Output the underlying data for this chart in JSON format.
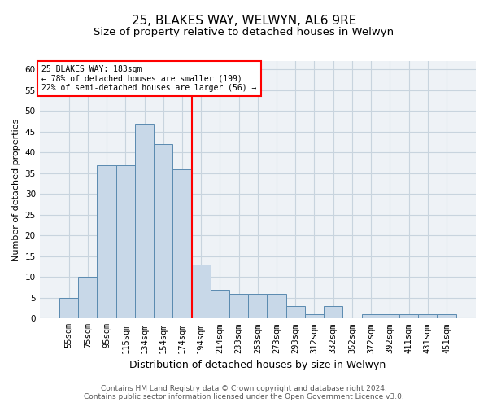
{
  "title": "25, BLAKES WAY, WELWYN, AL6 9RE",
  "subtitle": "Size of property relative to detached houses in Welwyn",
  "xlabel": "Distribution of detached houses by size in Welwyn",
  "ylabel": "Number of detached properties",
  "categories": [
    "55sqm",
    "75sqm",
    "95sqm",
    "115sqm",
    "134sqm",
    "154sqm",
    "174sqm",
    "194sqm",
    "214sqm",
    "233sqm",
    "253sqm",
    "273sqm",
    "293sqm",
    "312sqm",
    "332sqm",
    "352sqm",
    "372sqm",
    "392sqm",
    "411sqm",
    "431sqm",
    "451sqm"
  ],
  "values": [
    5,
    10,
    37,
    37,
    47,
    42,
    36,
    13,
    7,
    6,
    6,
    6,
    3,
    1,
    3,
    0,
    1,
    1,
    1,
    1,
    1
  ],
  "bar_color": "#c8d8e8",
  "bar_edge_color": "#5a8ab0",
  "vline_pos": 6.5,
  "vline_color": "red",
  "annotation_title": "25 BLAKES WAY: 183sqm",
  "annotation_line1": "← 78% of detached houses are smaller (199)",
  "annotation_line2": "22% of semi-detached houses are larger (56) →",
  "annotation_box_color": "white",
  "annotation_box_edge_color": "red",
  "ylim": [
    0,
    62
  ],
  "yticks": [
    0,
    5,
    10,
    15,
    20,
    25,
    30,
    35,
    40,
    45,
    50,
    55,
    60
  ],
  "grid_color": "#c8d4de",
  "background_color": "#eef2f6",
  "footer_line1": "Contains HM Land Registry data © Crown copyright and database right 2024.",
  "footer_line2": "Contains public sector information licensed under the Open Government Licence v3.0.",
  "title_fontsize": 11,
  "subtitle_fontsize": 9.5,
  "xlabel_fontsize": 9,
  "ylabel_fontsize": 8,
  "tick_fontsize": 7.5,
  "footer_fontsize": 6.5,
  "annotation_fontsize": 7
}
